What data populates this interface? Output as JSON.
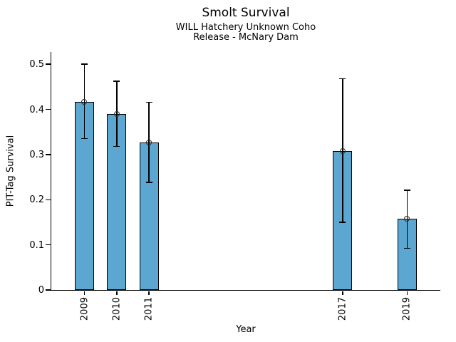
{
  "figure": {
    "background": "#ffffff"
  },
  "chart_data": {
    "type": "bar",
    "title": "Smolt Survival",
    "subtitle_lines": [
      "WILL Hatchery Unknown Coho",
      "Release - McNary Dam"
    ],
    "xlabel": "Year",
    "ylabel": "PIT-Tag Survival",
    "categories": [
      "2009",
      "2010",
      "2011",
      "2017",
      "2019"
    ],
    "x": [
      2009,
      2010,
      2011,
      2017,
      2019
    ],
    "series": [
      {
        "name": "PIT-Tag Survival",
        "values": [
          0.417,
          0.39,
          0.327,
          0.308,
          0.158
        ],
        "error_low": [
          0.335,
          0.318,
          0.238,
          0.15,
          0.092
        ],
        "error_high": [
          0.5,
          0.462,
          0.416,
          0.468,
          0.221
        ]
      }
    ],
    "yticks": [
      0,
      0.1,
      0.2,
      0.3,
      0.4,
      0.5
    ],
    "ytick_labels": [
      "0",
      "0.1",
      "0.2",
      "0.3",
      "0.4",
      "0.5"
    ],
    "ylim": [
      0,
      0.527
    ],
    "xlim": [
      2007.97,
      2020.03
    ],
    "bar_width_years": 0.6,
    "bar_color": "#5BA7D1",
    "bar_edge_color": "#000000",
    "error_color": "#000000",
    "marker": "open-circle",
    "grid": false,
    "legend_position": "none"
  }
}
